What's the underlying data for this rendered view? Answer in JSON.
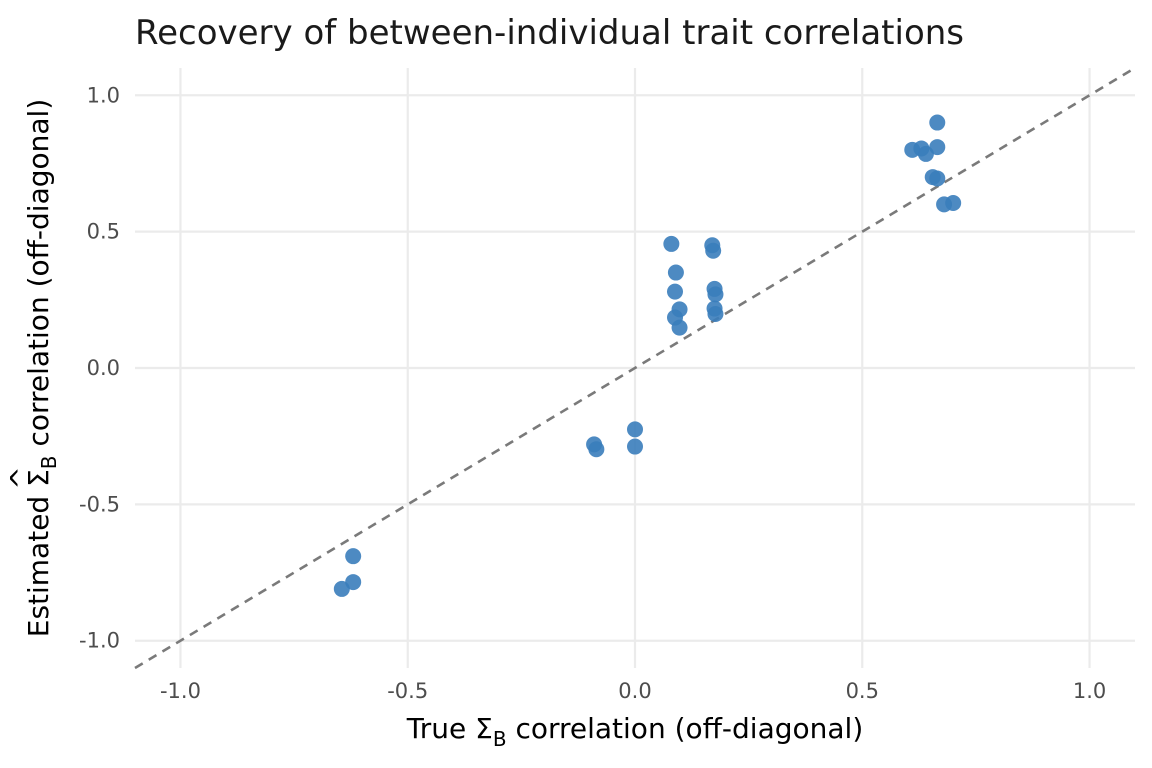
{
  "chart_data": {
    "type": "scatter",
    "title": "Recovery of between-individual trait correlations",
    "xlabel": {
      "prefix": "True ",
      "symbol": "Σ",
      "subscript": "B",
      "suffix": " correlation (off-diagonal)"
    },
    "ylabel": {
      "prefix": "Estimated ",
      "symbol": "Σ",
      "hat": "^",
      "subscript": "B",
      "suffix": " correlation (off-diagonal)"
    },
    "xlim": [
      -1.1,
      1.1
    ],
    "ylim": [
      -1.1,
      1.1
    ],
    "x_ticks": [
      -1.0,
      -0.5,
      0.0,
      0.5,
      1.0
    ],
    "y_ticks": [
      -1.0,
      -0.5,
      0.0,
      0.5,
      1.0
    ],
    "x_tick_labels": [
      "-1.0",
      "-0.5",
      "0.0",
      "0.5",
      "1.0"
    ],
    "y_tick_labels": [
      "-1.0",
      "-0.5",
      "0.0",
      "0.5",
      "1.0"
    ],
    "grid": true,
    "reference_line": {
      "type": "identity",
      "slope": 1,
      "intercept": 0,
      "style": "dashed",
      "color": "#7a7a7a"
    },
    "point_color": "#3a7dbb",
    "points": [
      {
        "x": 0.665,
        "y": 0.9
      },
      {
        "x": 0.61,
        "y": 0.8
      },
      {
        "x": 0.63,
        "y": 0.805
      },
      {
        "x": 0.64,
        "y": 0.785
      },
      {
        "x": 0.665,
        "y": 0.81
      },
      {
        "x": 0.655,
        "y": 0.7
      },
      {
        "x": 0.665,
        "y": 0.695
      },
      {
        "x": 0.68,
        "y": 0.6
      },
      {
        "x": 0.7,
        "y": 0.605
      },
      {
        "x": 0.08,
        "y": 0.455
      },
      {
        "x": 0.09,
        "y": 0.35
      },
      {
        "x": 0.088,
        "y": 0.28
      },
      {
        "x": 0.098,
        "y": 0.215
      },
      {
        "x": 0.088,
        "y": 0.185
      },
      {
        "x": 0.098,
        "y": 0.148
      },
      {
        "x": 0.17,
        "y": 0.45
      },
      {
        "x": 0.172,
        "y": 0.43
      },
      {
        "x": 0.175,
        "y": 0.29
      },
      {
        "x": 0.177,
        "y": 0.27
      },
      {
        "x": 0.175,
        "y": 0.218
      },
      {
        "x": 0.177,
        "y": 0.198
      },
      {
        "x": -0.09,
        "y": -0.28
      },
      {
        "x": -0.085,
        "y": -0.298
      },
      {
        "x": 0.0,
        "y": -0.225
      },
      {
        "x": 0.0,
        "y": -0.288
      },
      {
        "x": -0.62,
        "y": -0.69
      },
      {
        "x": -0.62,
        "y": -0.785
      },
      {
        "x": -0.645,
        "y": -0.81
      }
    ]
  }
}
